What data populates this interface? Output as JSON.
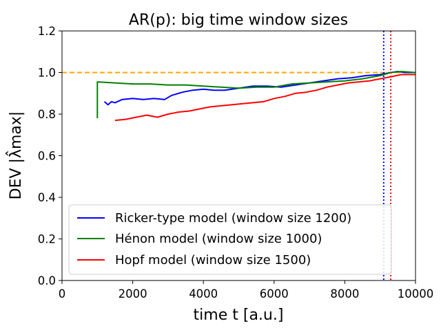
{
  "chart_data": {
    "type": "line",
    "title": "AR(p): big time window sizes",
    "xlabel": "time t [a.u.]",
    "ylabel": "DEV |λ̂max|",
    "xlim": [
      0,
      10000
    ],
    "ylim": [
      0.0,
      1.2
    ],
    "xticks": [
      "0",
      "2000",
      "4000",
      "6000",
      "8000",
      "10000"
    ],
    "yticks": [
      "0.0",
      "0.2",
      "0.4",
      "0.6",
      "0.8",
      "1.0",
      "1.2"
    ],
    "grid": false,
    "legend_position": "lower-left",
    "reference_line": {
      "y": 1.0,
      "color": "#ffa500",
      "style": "dashed"
    },
    "vertical_markers": [
      {
        "x": 9100,
        "color": "#0000ff",
        "style": "dotted"
      },
      {
        "x": 9300,
        "color": "#ff0000",
        "style": "dotted"
      }
    ],
    "series": [
      {
        "name": "Ricker-type model (window size 1200)",
        "color": "#0000ff",
        "x": [
          1200,
          1300,
          1400,
          1500,
          1700,
          2000,
          2300,
          2600,
          2900,
          3100,
          3400,
          3700,
          4000,
          4300,
          4600,
          5000,
          5400,
          5800,
          6200,
          6600,
          7000,
          7400,
          7800,
          8200,
          8600,
          9000,
          9300,
          9500,
          9700,
          10000
        ],
        "y": [
          0.86,
          0.845,
          0.86,
          0.855,
          0.87,
          0.875,
          0.87,
          0.875,
          0.87,
          0.89,
          0.905,
          0.915,
          0.92,
          0.915,
          0.915,
          0.925,
          0.935,
          0.935,
          0.93,
          0.94,
          0.95,
          0.96,
          0.97,
          0.975,
          0.985,
          0.99,
          1.0,
          1.005,
          1.0,
          1.0
        ]
      },
      {
        "name": "Hénon model (window size 1000)",
        "color": "#008000",
        "x": [
          1000,
          1000,
          1000,
          1500,
          2000,
          2500,
          3000,
          3500,
          4000,
          4500,
          5000,
          5500,
          6000,
          6500,
          7000,
          7500,
          8000,
          8500,
          9000,
          9300,
          9600,
          10000
        ],
        "y": [
          0.78,
          0.87,
          0.955,
          0.95,
          0.945,
          0.945,
          0.94,
          0.94,
          0.935,
          0.93,
          0.925,
          0.93,
          0.93,
          0.945,
          0.95,
          0.955,
          0.96,
          0.97,
          0.985,
          1.0,
          1.005,
          1.0
        ]
      },
      {
        "name": "Hopf model (window size 1500)",
        "color": "#ff0000",
        "x": [
          1500,
          1800,
          2100,
          2400,
          2700,
          3000,
          3300,
          3600,
          3900,
          4200,
          4500,
          4800,
          5100,
          5400,
          5700,
          6000,
          6300,
          6600,
          6900,
          7200,
          7500,
          7800,
          8100,
          8400,
          8700,
          9000,
          9300,
          9600,
          10000
        ],
        "y": [
          0.77,
          0.775,
          0.785,
          0.795,
          0.785,
          0.8,
          0.81,
          0.815,
          0.825,
          0.835,
          0.84,
          0.845,
          0.85,
          0.855,
          0.86,
          0.875,
          0.885,
          0.9,
          0.905,
          0.915,
          0.93,
          0.94,
          0.95,
          0.955,
          0.96,
          0.97,
          0.98,
          0.99,
          0.99
        ]
      }
    ]
  }
}
